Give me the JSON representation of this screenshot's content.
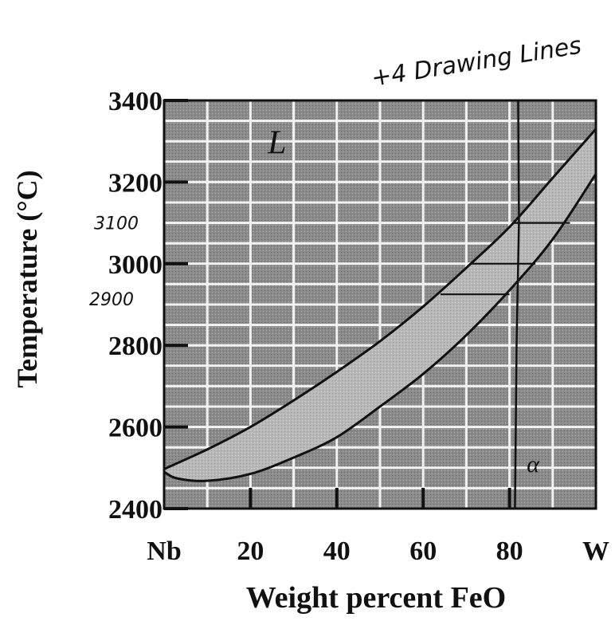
{
  "chart_data": {
    "type": "line",
    "title": "",
    "xlabel": "Weight percent FeO",
    "ylabel": "Temperature (°C)",
    "xlim": [
      0,
      100
    ],
    "ylim": [
      2400,
      3400
    ],
    "x_ticks": [
      {
        "value": 0,
        "label": "Nb"
      },
      {
        "value": 20,
        "label": "20"
      },
      {
        "value": 40,
        "label": "40"
      },
      {
        "value": 60,
        "label": "60"
      },
      {
        "value": 80,
        "label": "80"
      },
      {
        "value": 100,
        "label": "W"
      }
    ],
    "y_ticks": [
      {
        "value": 3400,
        "label": "3400"
      },
      {
        "value": 3200,
        "label": "3200"
      },
      {
        "value": 3000,
        "label": "3000"
      },
      {
        "value": 2800,
        "label": "2800"
      },
      {
        "value": 2600,
        "label": "2600"
      },
      {
        "value": 2400,
        "label": "2400"
      }
    ],
    "grid": true,
    "series": [
      {
        "name": "",
        "x": [
          0,
          10,
          20,
          30,
          40,
          50,
          60,
          70,
          80,
          90,
          100
        ],
        "y": [
          2497,
          2545,
          2600,
          2665,
          2735,
          2810,
          2895,
          2990,
          3090,
          3210,
          3330
        ]
      },
      {
        "name": "",
        "x": [
          0,
          3,
          10,
          20,
          30,
          40,
          50,
          60,
          70,
          80,
          90,
          100
        ],
        "y": [
          2490,
          2474,
          2468,
          2485,
          2525,
          2575,
          2650,
          2730,
          2825,
          2935,
          3060,
          3220
        ]
      }
    ],
    "tie_lines": [
      {
        "y": 2925,
        "x_from": 64,
        "x_to": 80
      },
      {
        "y": 3000,
        "x_from": 71,
        "x_to": 86
      },
      {
        "y": 3100,
        "x_from": 81,
        "x_to": 94
      }
    ],
    "vertical_line": {
      "x": 82
    },
    "phase_labels": [
      {
        "text": "L",
        "x": 24,
        "y": 3270
      },
      {
        "text": "α",
        "x": 84,
        "y": 2490
      }
    ],
    "annotations": [
      {
        "text": "+4 Drawing Lines"
      },
      {
        "text": "3100",
        "y": 3100
      },
      {
        "text": "2900",
        "y": 2925
      }
    ]
  }
}
